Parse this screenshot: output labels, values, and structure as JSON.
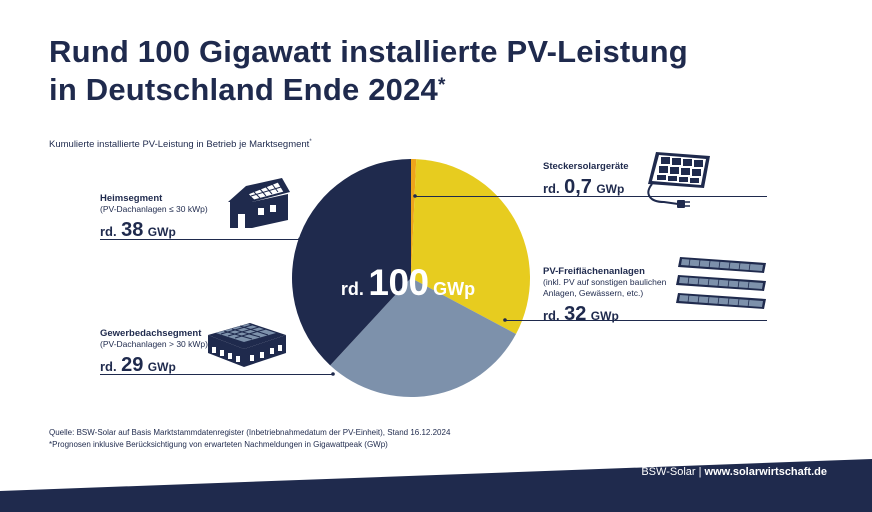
{
  "title": {
    "line1": "Rund 100 Gigawatt installierte PV-Leistung",
    "line2": "in Deutschland Ende 2024",
    "marker": "*"
  },
  "subtitle": {
    "text": "Kumulierte installierte PV-Leistung in Betrieb je Marktsegment",
    "marker": "*"
  },
  "total": {
    "prefix": "rd.",
    "value": "100",
    "unit": "GWp"
  },
  "segments": {
    "heim": {
      "name": "Heimsegment",
      "desc": "(PV-Dachanlagen ≤ 30 kWp)",
      "prefix": "rd.",
      "value": "38",
      "unit": "GWp"
    },
    "gewerbe": {
      "name": "Gewerbedachsegment",
      "desc": "(PV-Dachanlagen > 30 kWp)",
      "prefix": "rd.",
      "value": "29",
      "unit": "GWp"
    },
    "stecker": {
      "name": "Steckersolargeräte",
      "prefix": "rd.",
      "value": "0,7",
      "unit": "GWp"
    },
    "frei": {
      "name": "PV-Freiflächenanlagen",
      "desc1": "(inkl. PV auf sonstigen baulichen",
      "desc2": "Anlagen, Gewässern, etc.)",
      "prefix": "rd.",
      "value": "32",
      "unit": "GWp"
    }
  },
  "source": {
    "line1": "Quelle: BSW-Solar auf Basis Marktstammdatenregister (Inbetriebnahmedatum der PV-Einheit), Stand 16.12.2024",
    "line2": "*Prognosen inklusive Berücksichtigung von erwarteten Nachmeldungen in Gigawattpeak (GWp)"
  },
  "footer": {
    "brand": "BSW-Solar",
    "separator": " | ",
    "website": "www.solarwirtschaft.de"
  },
  "colors": {
    "navy": "#1f2a4d",
    "yellow": "#e7cc1f",
    "grey_blue": "#7d91ab",
    "orange": "#eea51b"
  },
  "icons": [
    "house-solar-icon",
    "plug-in-solar-panel-icon",
    "solar-field-icon",
    "commercial-roof-solar-icon"
  ],
  "chart_data": {
    "type": "pie",
    "start": "12 o'clock, clockwise",
    "slices": [
      {
        "label": "Steckersolargeräte",
        "value": 0.7,
        "color": "#eea51b"
      },
      {
        "label": "PV-Freiflächenanlagen",
        "value": 32,
        "color": "#e7cc1f"
      },
      {
        "label": "Gewerbedachsegment",
        "value": 29,
        "color": "#7d91ab"
      },
      {
        "label": "Heimsegment",
        "value": 38,
        "color": "#1f2a4d"
      }
    ],
    "total": 100,
    "unit": "GWp"
  }
}
